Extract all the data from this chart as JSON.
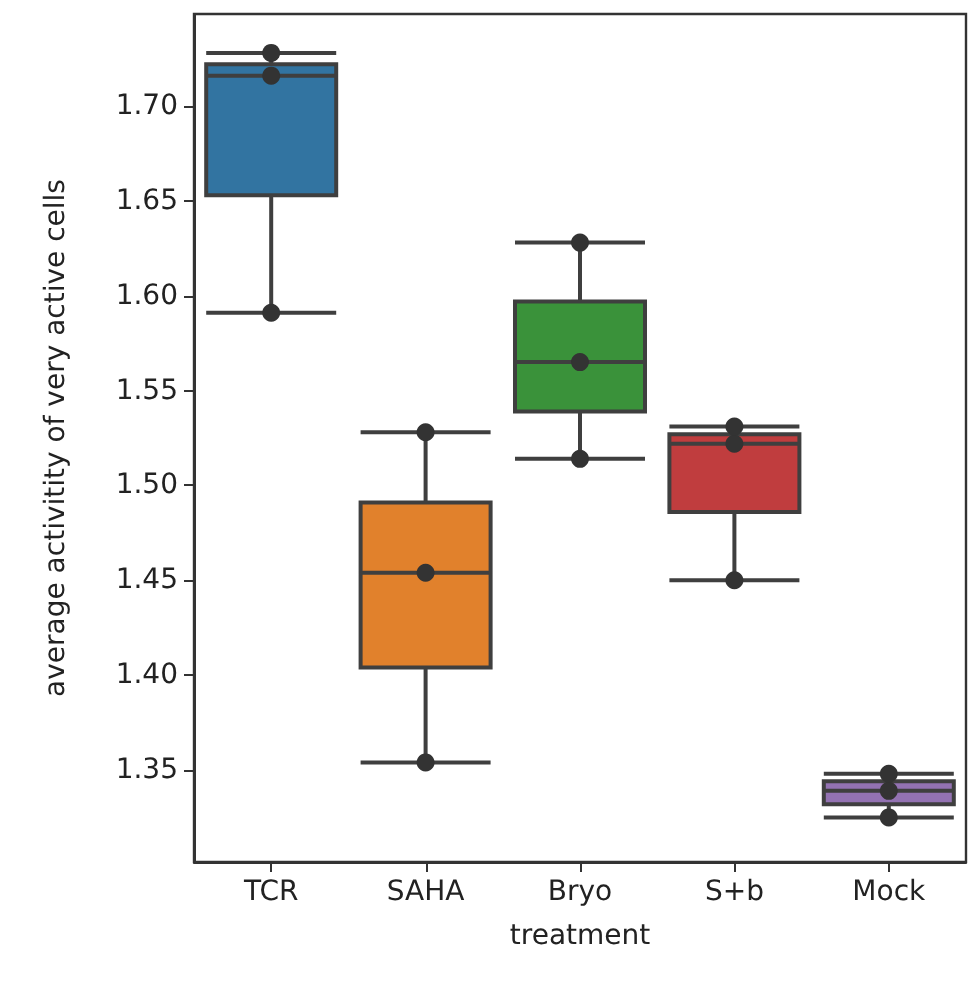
{
  "chart_data": {
    "type": "box",
    "xlabel": "treatment",
    "ylabel": "average activitity of very active cells",
    "categories": [
      "TCR",
      "SAHA",
      "Bryo",
      "S+b",
      "Mock"
    ],
    "colors": [
      "#3274a1",
      "#e1812c",
      "#3a923a",
      "#c03d3e",
      "#9372b2"
    ],
    "boxes": [
      {
        "low": 1.591,
        "q1": 1.653,
        "median": 1.716,
        "q3": 1.722,
        "high": 1.728
      },
      {
        "low": 1.354,
        "q1": 1.404,
        "median": 1.454,
        "q3": 1.491,
        "high": 1.528
      },
      {
        "low": 1.514,
        "q1": 1.539,
        "median": 1.565,
        "q3": 1.597,
        "high": 1.628
      },
      {
        "low": 1.45,
        "q1": 1.486,
        "median": 1.522,
        "q3": 1.527,
        "high": 1.531
      },
      {
        "low": 1.325,
        "q1": 1.332,
        "median": 1.339,
        "q3": 1.344,
        "high": 1.348
      }
    ],
    "series": [
      {
        "type": "scatter",
        "color": "#333333",
        "marker": "circle",
        "x": [
          "TCR",
          "TCR",
          "TCR",
          "SAHA",
          "SAHA",
          "SAHA",
          "Bryo",
          "Bryo",
          "Bryo",
          "S+b",
          "S+b",
          "S+b",
          "Mock",
          "Mock",
          "Mock"
        ],
        "values": [
          1.591,
          1.716,
          1.728,
          1.354,
          1.454,
          1.528,
          1.514,
          1.565,
          1.628,
          1.45,
          1.522,
          1.531,
          1.325,
          1.339,
          1.348
        ]
      }
    ],
    "ylim": [
      1.3015,
      1.7485
    ],
    "yticks": [
      1.35,
      {
        "value": 1.4,
        "label": "1.40"
      },
      1.45,
      {
        "value": 1.5,
        "label": "1.50"
      },
      1.55,
      {
        "value": 1.6,
        "label": "1.60"
      },
      1.65,
      {
        "value": 1.7,
        "label": "1.70"
      }
    ],
    "grid": false
  }
}
